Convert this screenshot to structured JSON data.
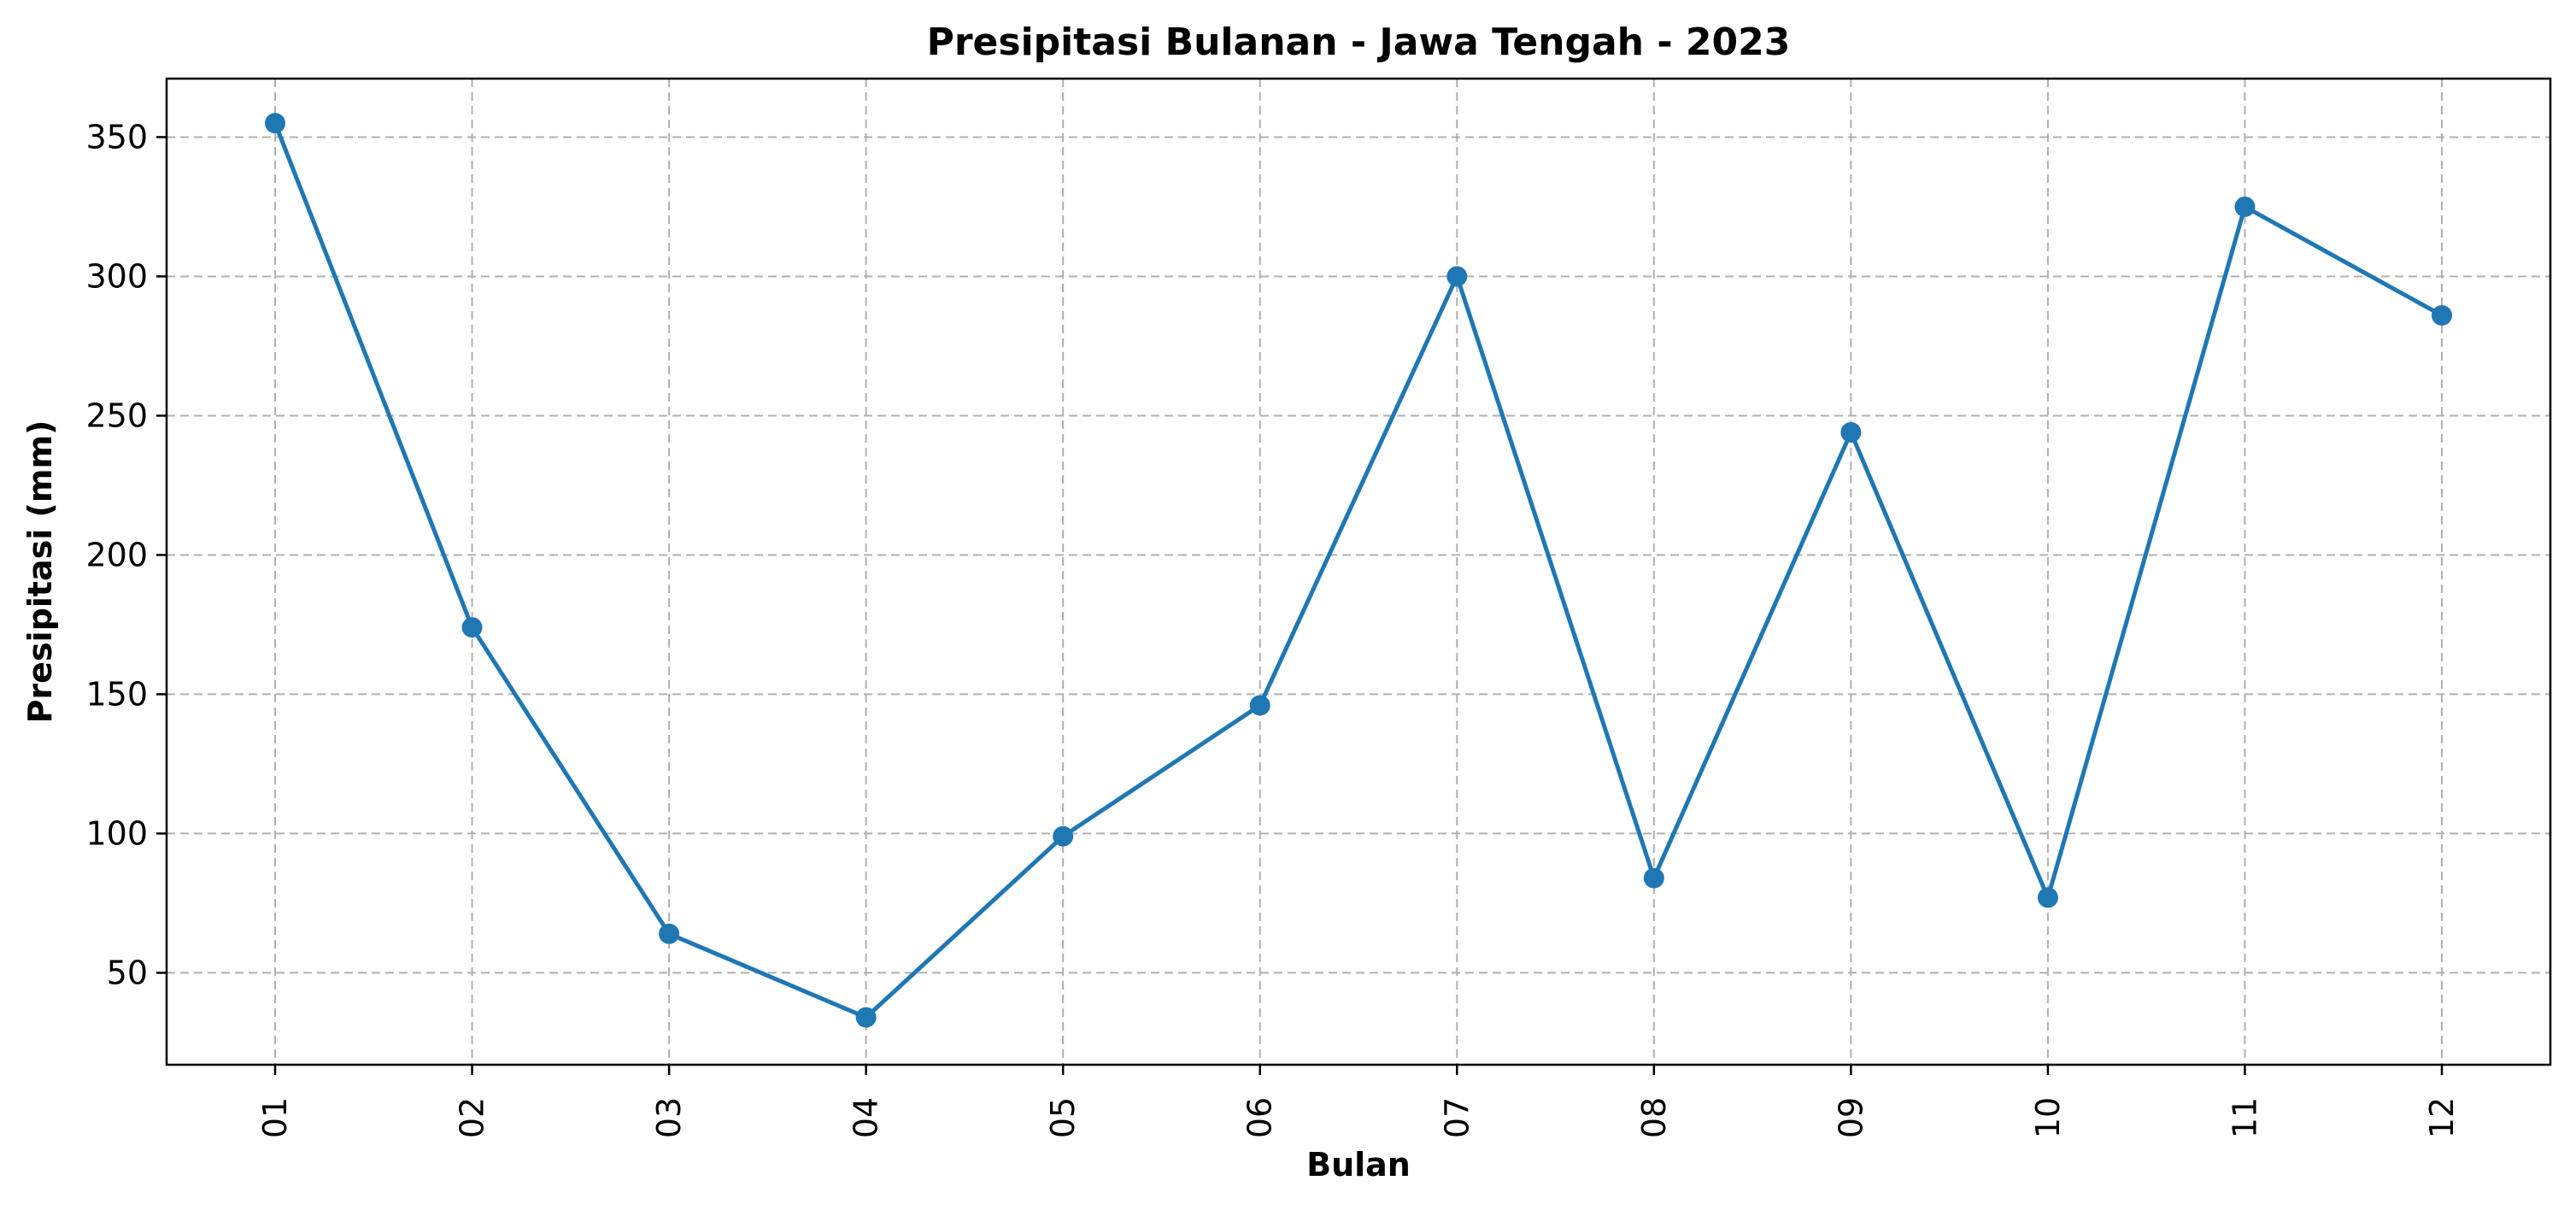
{
  "chart_data": {
    "type": "line",
    "title": "Presipitasi Bulanan - Jawa Tengah - 2023",
    "xlabel": "Bulan",
    "ylabel": "Presipitasi (mm)",
    "categories": [
      "01",
      "02",
      "03",
      "04",
      "05",
      "06",
      "07",
      "08",
      "09",
      "10",
      "11",
      "12"
    ],
    "series": [
      {
        "values": [
          355,
          174,
          64,
          34,
          99,
          146,
          300,
          84,
          244,
          77,
          325,
          286
        ],
        "color": "#1f77b4",
        "marker": "circle"
      }
    ],
    "yticks": [
      50,
      100,
      150,
      200,
      250,
      300,
      350
    ],
    "ylim": [
      17,
      371
    ],
    "grid": true
  }
}
